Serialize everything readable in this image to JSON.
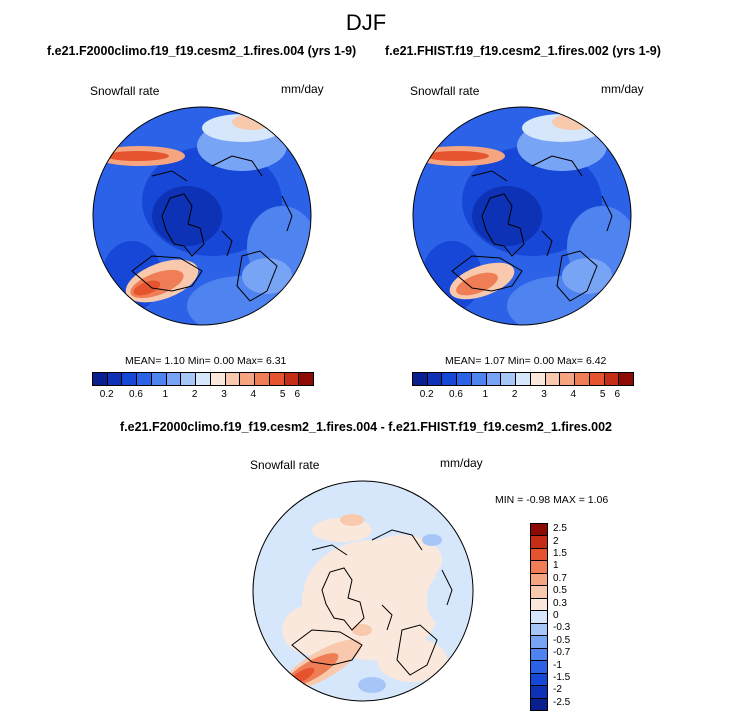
{
  "figure": {
    "title": "DJF"
  },
  "panel1": {
    "subtitle": "f.e21.F2000climo.f19_f19.cesm2_1.fires.004 (yrs 1-9)",
    "variable": "Snowfall rate",
    "units": "mm/day",
    "stats": "MEAN=   1.10  Min=   0.00  Max=   6.31"
  },
  "panel2": {
    "subtitle": "f.e21.FHIST.f19_f19.cesm2_1.fires.002 (yrs 1-9)",
    "variable": "Snowfall rate",
    "units": "mm/day",
    "stats": "MEAN=   1.07  Min=   0.00  Max=   6.42"
  },
  "panel3": {
    "subtitle": "f.e21.F2000climo.f19_f19.cesm2_1.fires.004 - f.e21.FHIST.f19_f19.cesm2_1.fires.002",
    "variable": "Snowfall rate",
    "units": "mm/day",
    "stats": "MIN = -0.98 MAX =   1.06"
  },
  "abs_colorbar": {
    "colors": [
      "#0a1f8f",
      "#0d32b5",
      "#1747d6",
      "#2c62e8",
      "#4f83f0",
      "#78a4f5",
      "#a7c6f8",
      "#d6e6fb",
      "#fbe8dc",
      "#f8c9ad",
      "#f5a57f",
      "#ef7d55",
      "#e5532f",
      "#c52e16",
      "#8c0b05"
    ],
    "labels": [
      "0.2",
      "0.6",
      "1",
      "2",
      "3",
      "4",
      "5",
      "6"
    ]
  },
  "diff_colorbar": {
    "colors": [
      "#8c0b05",
      "#c52e16",
      "#e5532f",
      "#ef7d55",
      "#f5a57f",
      "#f8c9ad",
      "#fbe8dc",
      "#d6e6fb",
      "#a7c6f8",
      "#78a4f5",
      "#4f83f0",
      "#2c62e8",
      "#1747d6",
      "#0d32b5",
      "#0a1f8f"
    ],
    "labels": [
      "2.5",
      "2",
      "1.5",
      "1",
      "0.7",
      "0.5",
      "0.3",
      "0",
      "-0.3",
      "-0.5",
      "-0.7",
      "-1",
      "-1.5",
      "-2",
      "-2.5"
    ]
  }
}
